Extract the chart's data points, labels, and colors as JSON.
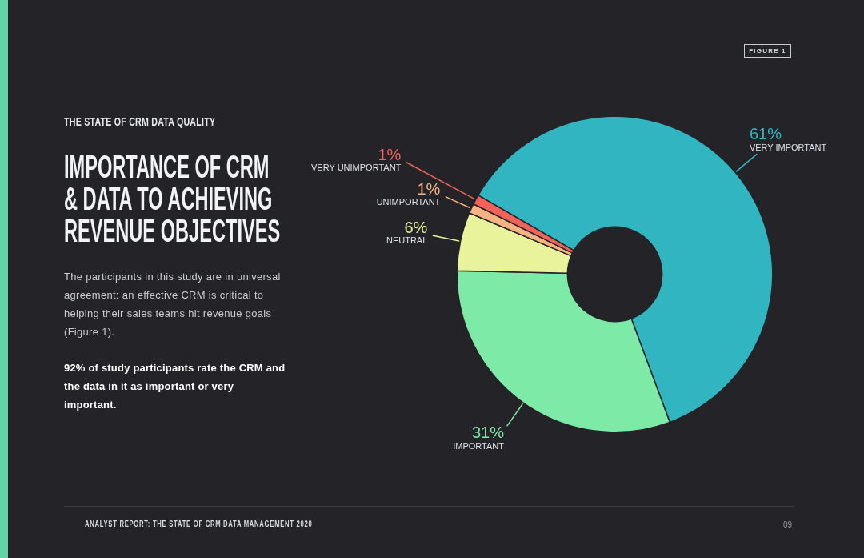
{
  "chart_data": {
    "type": "donut",
    "title": "IMPORTANCE OF CRM & DATA TO ACHIEVING REVENUE OBJECTIVES",
    "subtitle": "THE STATE OF CRM DATA QUALITY",
    "categories": [
      "VERY IMPORTANT",
      "IMPORTANT",
      "NEUTRAL",
      "UNIMPORTANT",
      "VERY UNIMPORTANT"
    ],
    "values": [
      61,
      31,
      6,
      1,
      1
    ],
    "colors": [
      "#31b6c1",
      "#7eeaa8",
      "#e9f39b",
      "#f6b381",
      "#f0625a"
    ],
    "value_labels": [
      "61%",
      "31%",
      "6%",
      "1%",
      "1%"
    ],
    "legend": false,
    "annotations": [
      "FIGURE 1",
      "The participants in this study are in universal agreement: an effective CRM is critical to helping their sales teams hit revenue goals (Figure 1).",
      "92% of study participants rate the CRM and the data in it as important or very important.",
      "ANALYST REPORT: THE STATE OF CRM DATA MANAGEMENT 2020",
      "09"
    ]
  }
}
